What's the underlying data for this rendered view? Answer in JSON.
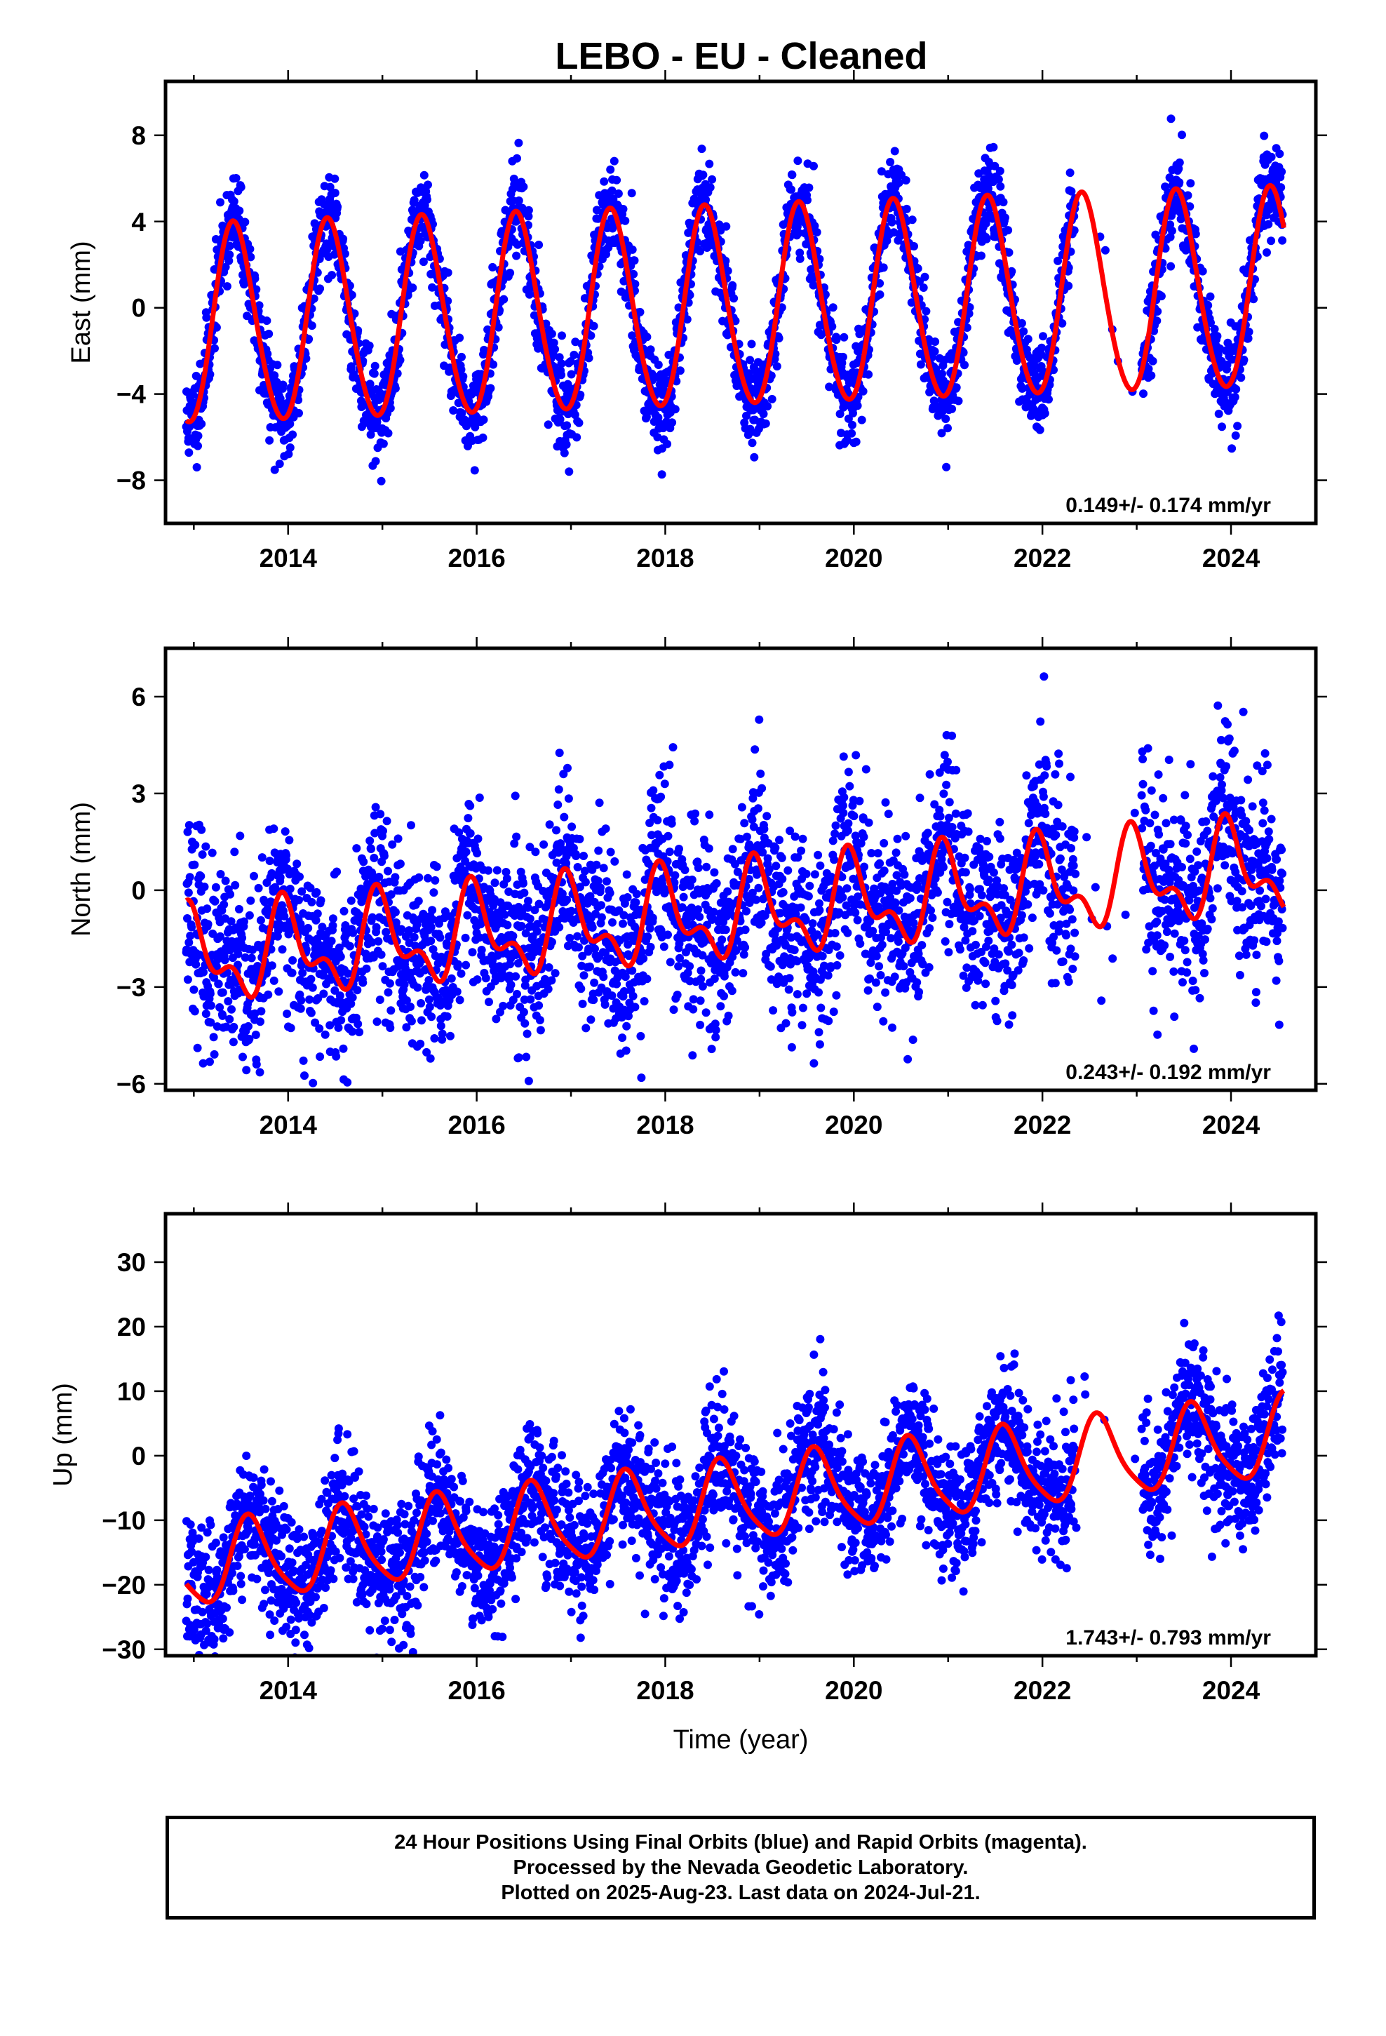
{
  "title": "LEBO  - EU - Cleaned",
  "colors": {
    "final_orbits": "#0000ff",
    "model": "#ff0000",
    "frame": "#000000"
  },
  "chart_data": [
    {
      "type": "scatter",
      "ylabel": "East (mm)",
      "xlabel": "",
      "xlim": [
        2012.7,
        2024.9
      ],
      "ylim": [
        -10,
        10.5
      ],
      "xticks": [
        2014,
        2016,
        2018,
        2020,
        2022,
        2024
      ],
      "yticks": [
        -8,
        -4,
        0,
        4,
        8
      ],
      "ytick_labels": [
        "−8",
        "−4",
        "0",
        "4",
        "8"
      ],
      "rate_label": "0.149+/- 0.174 mm/yr",
      "series": [
        {
          "kind": "points",
          "amplitude": 4.6,
          "phase_peak": 0.43,
          "trend": 0.149,
          "offset": -0.15,
          "annual2": 0.35,
          "noise": 1.05,
          "step": 0.0035,
          "seed": 11
        },
        {
          "kind": "model"
        }
      ],
      "gaps": [
        [
          2022.35,
          2023.05
        ]
      ]
    },
    {
      "type": "scatter",
      "ylabel": "North (mm)",
      "xlabel": "",
      "xlim": [
        2012.7,
        2024.9
      ],
      "ylim": [
        -6.2,
        7.5
      ],
      "xticks": [
        2014,
        2016,
        2018,
        2020,
        2022,
        2024
      ],
      "yticks": [
        -6,
        -3,
        0,
        3,
        6
      ],
      "ytick_labels": [
        "−6",
        "−3",
        "0",
        "3",
        "6"
      ],
      "rate_label": "0.243+/- 0.192 mm/yr",
      "series": [
        {
          "kind": "points",
          "amplitude": 1.2,
          "phase_peak": 0.98,
          "trend": 0.243,
          "offset": -0.9,
          "annual2": 0.7,
          "noise": 1.45,
          "step": 0.0035,
          "seed": 23
        },
        {
          "kind": "model"
        }
      ],
      "gaps": [
        [
          2022.35,
          2023.05
        ]
      ]
    },
    {
      "type": "scatter",
      "ylabel": "Up (mm)",
      "xlabel": "Time (year)",
      "xlim": [
        2012.7,
        2024.9
      ],
      "ylim": [
        -31,
        37.5
      ],
      "xticks": [
        2014,
        2016,
        2018,
        2020,
        2022,
        2024
      ],
      "yticks": [
        -30,
        -20,
        -10,
        0,
        10,
        20,
        30
      ],
      "ytick_labels": [
        "−30",
        "−20",
        "−10",
        "0",
        "10",
        "20",
        "30"
      ],
      "rate_label": "1.743+/- 0.793 mm/yr",
      "series": [
        {
          "kind": "points",
          "amplitude": 6.2,
          "phase_peak": 0.6,
          "trend": 1.743,
          "offset": -8.5,
          "annual2": 1.2,
          "noise": 5.2,
          "step": 0.0035,
          "seed": 37
        },
        {
          "kind": "model"
        }
      ],
      "gaps": [
        [
          2022.35,
          2023.05
        ]
      ]
    }
  ],
  "footer": {
    "line1": "24 Hour Positions Using Final Orbits (blue) and Rapid Orbits (magenta).",
    "line2": "Processed by the Nevada Geodetic Laboratory.",
    "line3": "Plotted on 2025-Aug-23. Last data on 2024-Jul-21."
  }
}
